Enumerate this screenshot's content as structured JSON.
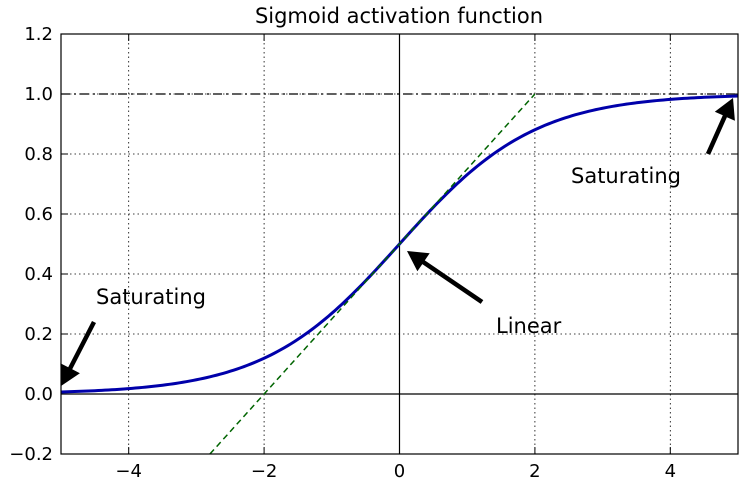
{
  "chart_data": {
    "type": "line",
    "title": "Sigmoid activation function",
    "xlabel": "",
    "ylabel": "",
    "xlim": [
      -5,
      5
    ],
    "ylim": [
      -0.2,
      1.2
    ],
    "x_ticks": [
      -4,
      -2,
      0,
      2,
      4
    ],
    "x_tick_labels": [
      "−4",
      "−2",
      "0",
      "2",
      "4"
    ],
    "y_ticks": [
      -0.2,
      0.0,
      0.2,
      0.4,
      0.6,
      0.8,
      1.0,
      1.2
    ],
    "y_tick_labels": [
      "−0.2",
      "0.0",
      "0.2",
      "0.4",
      "0.6",
      "0.8",
      "1.0",
      "1.2"
    ],
    "grid": true,
    "series": [
      {
        "kind": "sigmoid",
        "color": "#0000aa",
        "style": "solid",
        "x": [
          -5,
          -4,
          -3,
          -2,
          -1,
          0,
          1,
          2,
          3,
          4,
          5
        ],
        "y": [
          0.0067,
          0.018,
          0.047,
          0.119,
          0.269,
          0.5,
          0.731,
          0.881,
          0.953,
          0.982,
          0.9933
        ]
      },
      {
        "kind": "tangent",
        "color": "#006400",
        "style": "dashed",
        "x": [
          -2.8,
          2.0
        ],
        "y": [
          -0.2,
          1.0
        ]
      }
    ],
    "reference_lines": [
      {
        "axis": "y",
        "value": 0,
        "style": "solid",
        "color": "#000000"
      },
      {
        "axis": "y",
        "value": 1,
        "style": "dashdot",
        "color": "#000000"
      },
      {
        "axis": "x",
        "value": 0,
        "style": "solid",
        "color": "#000000"
      }
    ],
    "annotations": [
      {
        "text": "Saturating",
        "xy": [
          -5,
          0
        ],
        "xytext": [
          -4.5,
          0.3
        ]
      },
      {
        "text": "Saturating",
        "xy": [
          5,
          1
        ],
        "xytext": [
          2.5,
          0.7
        ]
      },
      {
        "text": "Linear",
        "xy": [
          0,
          0.5
        ],
        "xytext": [
          1.4,
          0.2
        ]
      }
    ]
  }
}
